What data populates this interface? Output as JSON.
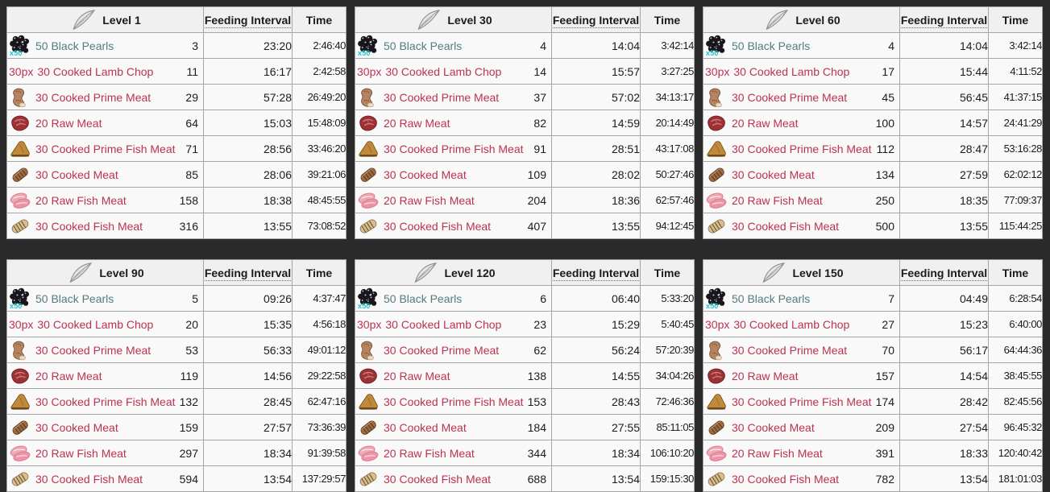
{
  "colors": {
    "page_background": "#2b2b2b",
    "table_background": "#f9f9f9",
    "header_background": "#f0f0f0",
    "border": "#a6a6a6",
    "teal_link": "#507d7f",
    "red_link": "#bb3352",
    "pearl_stack_count": "#1fc9cb"
  },
  "header_cols": {
    "feeding_interval": "Feeding Interval",
    "time": "Time"
  },
  "foods": [
    {
      "name": "50 Black Pearls",
      "icon": "black-pearls-icon",
      "stack_label": "x50",
      "link_type": "normal"
    },
    {
      "name": "30 Cooked Lamb Chop",
      "icon": "broken-image",
      "icon_text": "30px",
      "link_type": "red"
    },
    {
      "name": "30 Cooked Prime Meat",
      "icon": "cooked-prime-meat-icon",
      "link_type": "red"
    },
    {
      "name": "20 Raw Meat",
      "icon": "raw-meat-icon",
      "link_type": "red"
    },
    {
      "name": "30 Cooked Prime Fish Meat",
      "icon": "cooked-prime-fish-meat-icon",
      "link_type": "red"
    },
    {
      "name": "30 Cooked Meat",
      "icon": "cooked-meat-icon",
      "link_type": "red"
    },
    {
      "name": "20 Raw Fish Meat",
      "icon": "raw-fish-meat-icon",
      "link_type": "red"
    },
    {
      "name": "30 Cooked Fish Meat",
      "icon": "cooked-fish-meat-icon",
      "link_type": "red"
    }
  ],
  "tables": [
    {
      "level": "Level 1",
      "rows": [
        {
          "qty": "3",
          "interval": "23:20",
          "time": "2:46:40"
        },
        {
          "qty": "11",
          "interval": "16:17",
          "time": "2:42:58"
        },
        {
          "qty": "29",
          "interval": "57:28",
          "time": "26:49:20"
        },
        {
          "qty": "64",
          "interval": "15:03",
          "time": "15:48:09"
        },
        {
          "qty": "71",
          "interval": "28:56",
          "time": "33:46:20"
        },
        {
          "qty": "85",
          "interval": "28:06",
          "time": "39:21:06"
        },
        {
          "qty": "158",
          "interval": "18:38",
          "time": "48:45:55"
        },
        {
          "qty": "316",
          "interval": "13:55",
          "time": "73:08:52"
        }
      ]
    },
    {
      "level": "Level 30",
      "rows": [
        {
          "qty": "4",
          "interval": "14:04",
          "time": "3:42:14"
        },
        {
          "qty": "14",
          "interval": "15:57",
          "time": "3:27:25"
        },
        {
          "qty": "37",
          "interval": "57:02",
          "time": "34:13:17"
        },
        {
          "qty": "82",
          "interval": "14:59",
          "time": "20:14:49"
        },
        {
          "qty": "91",
          "interval": "28:51",
          "time": "43:17:08"
        },
        {
          "qty": "109",
          "interval": "28:02",
          "time": "50:27:46"
        },
        {
          "qty": "204",
          "interval": "18:36",
          "time": "62:57:46"
        },
        {
          "qty": "407",
          "interval": "13:55",
          "time": "94:12:45"
        }
      ]
    },
    {
      "level": "Level 60",
      "rows": [
        {
          "qty": "4",
          "interval": "14:04",
          "time": "3:42:14"
        },
        {
          "qty": "17",
          "interval": "15:44",
          "time": "4:11:52"
        },
        {
          "qty": "45",
          "interval": "56:45",
          "time": "41:37:15"
        },
        {
          "qty": "100",
          "interval": "14:57",
          "time": "24:41:29"
        },
        {
          "qty": "112",
          "interval": "28:47",
          "time": "53:16:28"
        },
        {
          "qty": "134",
          "interval": "27:59",
          "time": "62:02:12"
        },
        {
          "qty": "250",
          "interval": "18:35",
          "time": "77:09:37"
        },
        {
          "qty": "500",
          "interval": "13:55",
          "time": "115:44:25"
        }
      ]
    },
    {
      "level": "Level 90",
      "rows": [
        {
          "qty": "5",
          "interval": "09:26",
          "time": "4:37:47"
        },
        {
          "qty": "20",
          "interval": "15:35",
          "time": "4:56:18"
        },
        {
          "qty": "53",
          "interval": "56:33",
          "time": "49:01:12"
        },
        {
          "qty": "119",
          "interval": "14:56",
          "time": "29:22:58"
        },
        {
          "qty": "132",
          "interval": "28:45",
          "time": "62:47:16"
        },
        {
          "qty": "159",
          "interval": "27:57",
          "time": "73:36:39"
        },
        {
          "qty": "297",
          "interval": "18:34",
          "time": "91:39:58"
        },
        {
          "qty": "594",
          "interval": "13:54",
          "time": "137:29:57"
        }
      ]
    },
    {
      "level": "Level 120",
      "rows": [
        {
          "qty": "6",
          "interval": "06:40",
          "time": "5:33:20"
        },
        {
          "qty": "23",
          "interval": "15:29",
          "time": "5:40:45"
        },
        {
          "qty": "62",
          "interval": "56:24",
          "time": "57:20:39"
        },
        {
          "qty": "138",
          "interval": "14:55",
          "time": "34:04:26"
        },
        {
          "qty": "153",
          "interval": "28:43",
          "time": "72:46:36"
        },
        {
          "qty": "184",
          "interval": "27:55",
          "time": "85:11:05"
        },
        {
          "qty": "344",
          "interval": "18:34",
          "time": "106:10:20"
        },
        {
          "qty": "688",
          "interval": "13:54",
          "time": "159:15:30"
        }
      ]
    },
    {
      "level": "Level 150",
      "rows": [
        {
          "qty": "7",
          "interval": "04:49",
          "time": "6:28:54"
        },
        {
          "qty": "27",
          "interval": "15:23",
          "time": "6:40:00"
        },
        {
          "qty": "70",
          "interval": "56:17",
          "time": "64:44:36"
        },
        {
          "qty": "157",
          "interval": "14:54",
          "time": "38:45:55"
        },
        {
          "qty": "174",
          "interval": "28:42",
          "time": "82:45:56"
        },
        {
          "qty": "209",
          "interval": "27:54",
          "time": "96:45:32"
        },
        {
          "qty": "391",
          "interval": "18:33",
          "time": "120:40:42"
        },
        {
          "qty": "782",
          "interval": "13:54",
          "time": "181:01:03"
        }
      ]
    }
  ]
}
